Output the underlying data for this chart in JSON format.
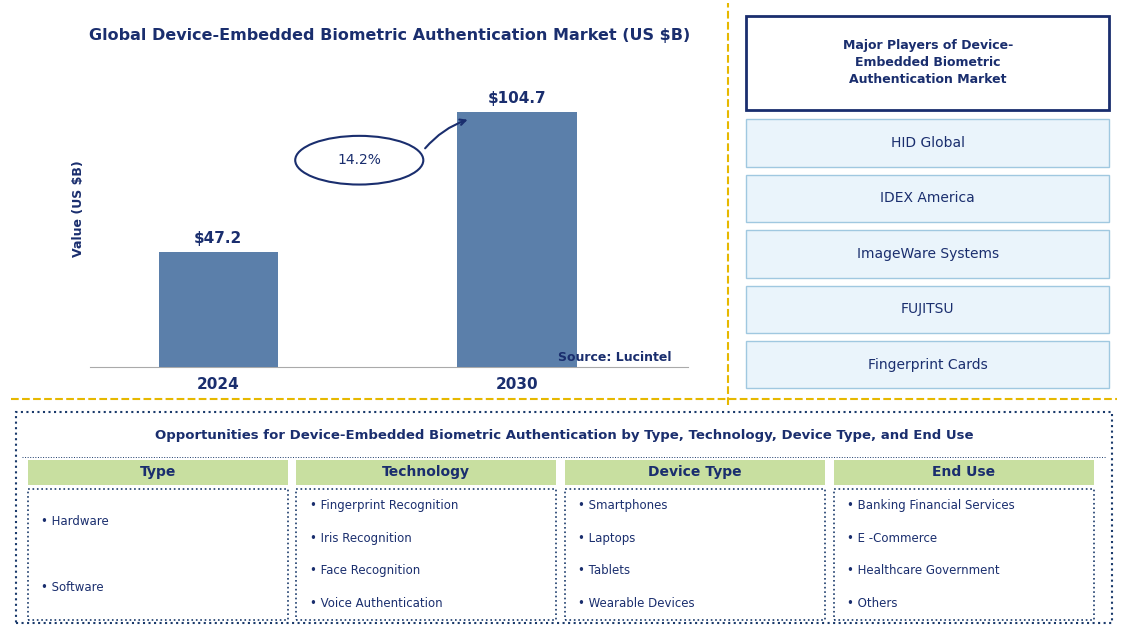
{
  "title": "Global Device-Embedded Biometric Authentication Market (US $B)",
  "bar_years": [
    "2024",
    "2030"
  ],
  "bar_values": [
    47.2,
    104.7
  ],
  "bar_labels": [
    "$47.2",
    "$104.7"
  ],
  "cagr_text": "14.2%",
  "ylabel": "Value (US $B)",
  "source_text": "Source: Lucintel",
  "dark_blue": "#1a2e6e",
  "bar_blue": "#5b7faa",
  "players_title": "Major Players of Device-\nEmbedded Biometric\nAuthentication Market",
  "players": [
    "HID Global",
    "IDEX America",
    "ImageWare Systems",
    "FUJITSU",
    "Fingerprint Cards"
  ],
  "bottom_title": "Opportunities for Device-Embedded Biometric Authentication by Type, Technology, Device Type, and End Use",
  "columns": [
    "Type",
    "Technology",
    "Device Type",
    "End Use"
  ],
  "column_items": [
    [
      "Hardware",
      "Software"
    ],
    [
      "Fingerprint Recognition",
      "Iris Recognition",
      "Face Recognition",
      "Voice Authentication"
    ],
    [
      "Smartphones",
      "Laptops",
      "Tablets",
      "Wearable Devices"
    ],
    [
      "Banking Financial Services",
      "E -Commerce",
      "Healthcare Government",
      "Others"
    ]
  ],
  "header_bg": "#c8dfa0",
  "player_box_bg": "#eaf4fb",
  "player_header_border": "#1a2e6e",
  "player_box_border": "#a0c8e0",
  "divider_color": "#e6b800",
  "bottom_border_color": "#1a3a6b",
  "bottom_outer_border": "#1a3a6b"
}
